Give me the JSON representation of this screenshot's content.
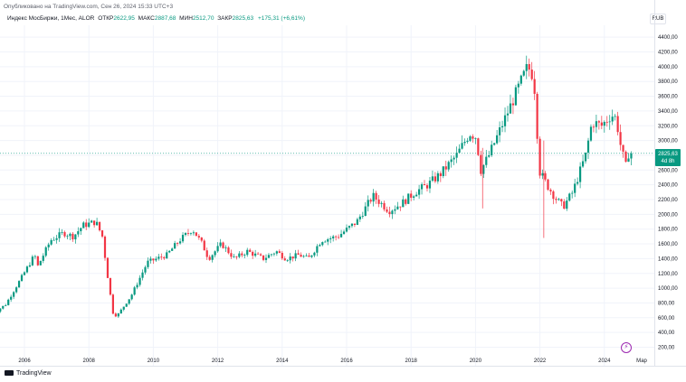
{
  "header": {
    "published": "Опубликовано на TradingView.com, Сен 26, 2024 15:33 UTC+3",
    "legend": {
      "symbol": "Индекс МосБиржи, 1Мес, ALOR",
      "open_label": "ОТКР",
      "open_value": "2622,95",
      "high_label": "МАКС",
      "high_value": "2887,68",
      "low_label": "МИН",
      "low_value": "2512,70",
      "close_label": "ЗАКР",
      "close_value": "2825,63",
      "change": "+175,31 (+6,61%)"
    },
    "currency": "RUB"
  },
  "price_tag": {
    "price": "2825,63",
    "countdown": "4d 8h"
  },
  "footer": {
    "brand": "TradingView",
    "last_month_label": "Мар"
  },
  "colors": {
    "up": "#089981",
    "down": "#f23645",
    "grid": "#f0f3fa",
    "axis_text": "#131722"
  },
  "chart_data": {
    "type": "candlestick",
    "title": "Индекс МосБиржи, 1Мес, ALOR",
    "ylabel": "RUB",
    "ylim": [
      10,
      4500
    ],
    "y_ticks": [
      200,
      400,
      600,
      800,
      1000,
      1200,
      1400,
      1600,
      1800,
      2000,
      2200,
      2400,
      2600,
      2800,
      3000,
      3200,
      3400,
      3600,
      3800,
      4000,
      4200,
      4400
    ],
    "y_tick_labels": [
      "200,00",
      "400,00",
      "600,00",
      "800,00",
      "1000,00",
      "1200,00",
      "1400,00",
      "1600,00",
      "1800,00",
      "2000,00",
      "2200,00",
      "2400,00",
      "2600,00",
      "2800,00",
      "3000,00",
      "3200,00",
      "3400,00",
      "3600,00",
      "3800,00",
      "4000,00",
      "4200,00",
      "4400,00"
    ],
    "x_ticks": [
      2006,
      2008,
      2010,
      2012,
      2014,
      2016,
      2018,
      2020,
      2022,
      2024
    ],
    "x_tick_labels": [
      "2006",
      "2008",
      "2010",
      "2012",
      "2014",
      "2016",
      "2018",
      "2020",
      "2022",
      "2024"
    ],
    "xlim": [
      2005.0,
      2025.2
    ],
    "last_close": 2825.63,
    "anchors": [
      [
        2005.0,
        620
      ],
      [
        2005.5,
        780
      ],
      [
        2006.0,
        1150
      ],
      [
        2006.4,
        1450
      ],
      [
        2006.5,
        1300
      ],
      [
        2006.9,
        1650
      ],
      [
        2007.3,
        1750
      ],
      [
        2007.6,
        1700
      ],
      [
        2007.9,
        1850
      ],
      [
        2008.3,
        1900
      ],
      [
        2008.5,
        1700
      ],
      [
        2008.7,
        1050
      ],
      [
        2008.85,
        620
      ],
      [
        2009.0,
        650
      ],
      [
        2009.4,
        900
      ],
      [
        2009.9,
        1350
      ],
      [
        2010.5,
        1450
      ],
      [
        2010.9,
        1650
      ],
      [
        2011.3,
        1800
      ],
      [
        2011.6,
        1600
      ],
      [
        2011.8,
        1400
      ],
      [
        2012.2,
        1600
      ],
      [
        2012.6,
        1400
      ],
      [
        2013.0,
        1500
      ],
      [
        2013.5,
        1400
      ],
      [
        2013.9,
        1500
      ],
      [
        2014.2,
        1400
      ],
      [
        2014.6,
        1450
      ],
      [
        2014.9,
        1400
      ],
      [
        2015.3,
        1650
      ],
      [
        2015.8,
        1700
      ],
      [
        2016.4,
        1900
      ],
      [
        2016.9,
        2250
      ],
      [
        2017.4,
        2050
      ],
      [
        2017.8,
        2150
      ],
      [
        2018.2,
        2300
      ],
      [
        2018.6,
        2400
      ],
      [
        2019.0,
        2550
      ],
      [
        2019.5,
        2800
      ],
      [
        2019.9,
        3100
      ],
      [
        2020.1,
        3050
      ],
      [
        2020.25,
        2600
      ],
      [
        2020.5,
        2800
      ],
      [
        2020.9,
        3200
      ],
      [
        2021.3,
        3600
      ],
      [
        2021.7,
        4000
      ],
      [
        2021.85,
        3900
      ],
      [
        2021.95,
        3600
      ],
      [
        2022.05,
        2600
      ],
      [
        2022.3,
        2400
      ],
      [
        2022.6,
        2200
      ],
      [
        2022.8,
        2100
      ],
      [
        2023.1,
        2300
      ],
      [
        2023.5,
        2800
      ],
      [
        2023.7,
        3250
      ],
      [
        2024.0,
        3200
      ],
      [
        2024.3,
        3350
      ],
      [
        2024.45,
        3300
      ],
      [
        2024.6,
        2900
      ],
      [
        2024.75,
        2650
      ],
      [
        2024.83,
        2825
      ]
    ]
  }
}
